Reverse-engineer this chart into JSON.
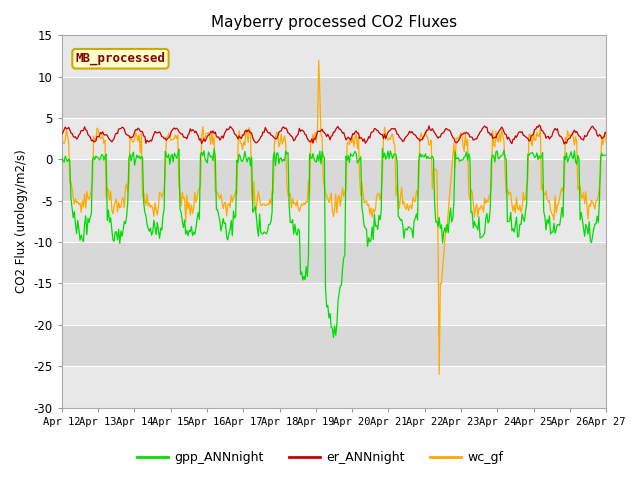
{
  "title": "Mayberry processed CO2 Fluxes",
  "ylabel": "CO2 Flux (urology/m2/s)",
  "ylim": [
    -30,
    15
  ],
  "yticks": [
    -30,
    -25,
    -20,
    -15,
    -10,
    -5,
    0,
    5,
    10,
    15
  ],
  "xlabel_ticks": [
    "Apr 12",
    "Apr 13",
    "Apr 14",
    "Apr 15",
    "Apr 16",
    "Apr 17",
    "Apr 18",
    "Apr 19",
    "Apr 20",
    "Apr 21",
    "Apr 22",
    "Apr 23",
    "Apr 24",
    "Apr 25",
    "Apr 26",
    "Apr 27"
  ],
  "box_label": "MB_processed",
  "box_facecolor": "#ffffcc",
  "box_edgecolor": "#ccaa00",
  "box_textcolor": "#880000",
  "legend_entries": [
    "gpp_ANNnight",
    "er_ANNnight",
    "wc_gf"
  ],
  "line_colors": [
    "#00dd00",
    "#cc0000",
    "#ffaa00"
  ],
  "fig_bg_color": "#ffffff",
  "plot_bg_light": "#e8e8e8",
  "plot_bg_dark": "#d8d8d8",
  "grid_color": "#ffffff",
  "n_points": 480,
  "seed": 42
}
